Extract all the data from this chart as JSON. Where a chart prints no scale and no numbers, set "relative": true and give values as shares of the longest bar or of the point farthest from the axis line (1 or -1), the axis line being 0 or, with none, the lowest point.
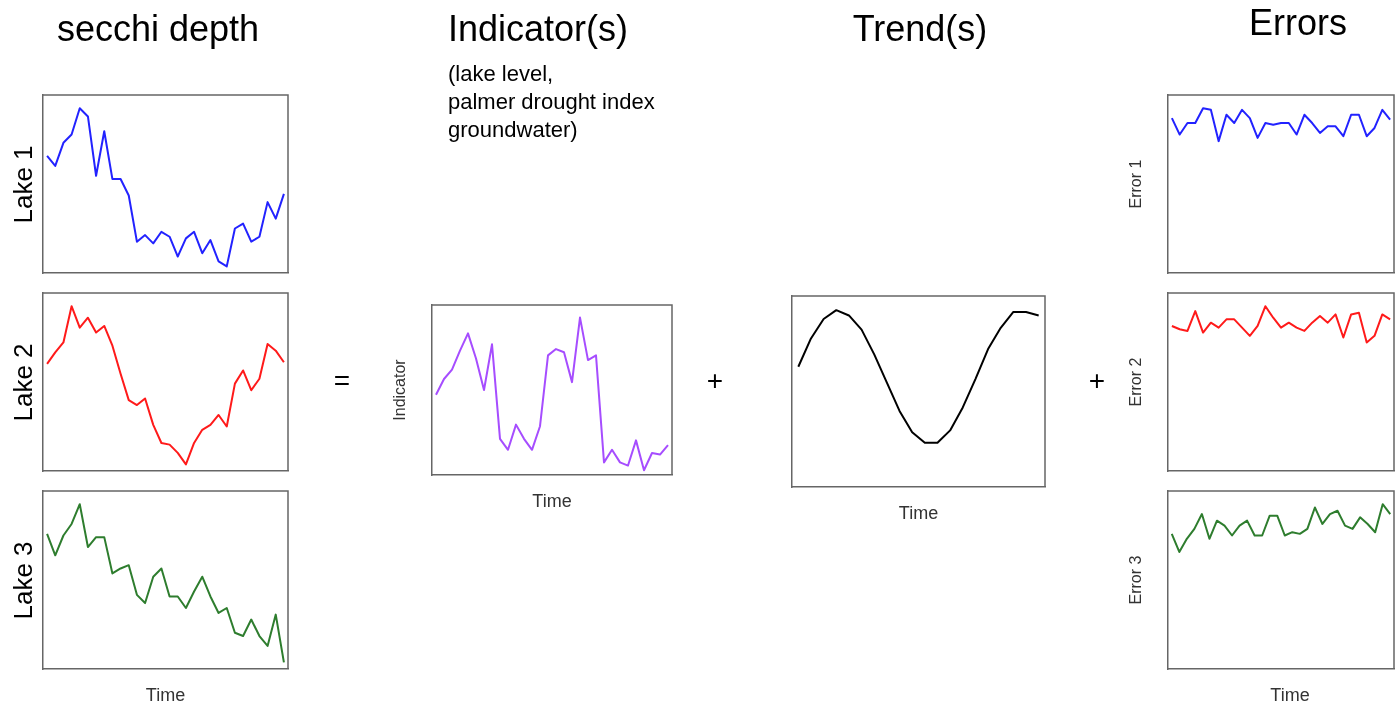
{
  "chart_data": [
    {
      "type": "line",
      "relative": true,
      "title": "secchi depth",
      "ylabel": "Lake 1",
      "color": "#2222ff",
      "categories": [
        null,
        null,
        null,
        null,
        null,
        null,
        null,
        null,
        null,
        null,
        null,
        null,
        null,
        null,
        null,
        null,
        null,
        null,
        null,
        null,
        null,
        null,
        null,
        null,
        null,
        null,
        null,
        null,
        null,
        null
      ],
      "values": [
        0.71,
        0.65,
        0.79,
        0.84,
        1,
        0.95,
        0.59,
        0.86,
        0.57,
        0.57,
        0.47,
        0.19,
        0.23,
        0.18,
        0.25,
        0.22,
        0.1,
        0.21,
        0.25,
        0.12,
        0.2,
        0.07,
        0.04,
        0.27,
        0.3,
        0.19,
        0.22,
        0.43,
        0.33,
        0.48
      ]
    },
    {
      "type": "line",
      "relative": true,
      "ylabel": "Lake 2",
      "color": "#ff1a1a",
      "annotations": [
        "="
      ],
      "categories": [
        null,
        null,
        null,
        null,
        null,
        null,
        null,
        null,
        null,
        null,
        null,
        null,
        null,
        null,
        null,
        null,
        null,
        null,
        null,
        null,
        null,
        null,
        null,
        null,
        null,
        null,
        null,
        null,
        null,
        null
      ],
      "values": [
        0.65,
        0.72,
        0.78,
        1,
        0.87,
        0.93,
        0.84,
        0.88,
        0.76,
        0.59,
        0.43,
        0.4,
        0.44,
        0.28,
        0.17,
        0.16,
        0.11,
        0.04,
        0.17,
        0.25,
        0.28,
        0.34,
        0.27,
        0.53,
        0.61,
        0.49,
        0.56,
        0.77,
        0.73,
        0.66
      ]
    },
    {
      "type": "line",
      "relative": true,
      "ylabel": "Lake 3",
      "xlabel": "Time",
      "color": "#2e7d2e",
      "categories": [
        null,
        null,
        null,
        null,
        null,
        null,
        null,
        null,
        null,
        null,
        null,
        null,
        null,
        null,
        null,
        null,
        null,
        null,
        null,
        null,
        null,
        null,
        null,
        null,
        null,
        null,
        null,
        null,
        null,
        null
      ],
      "values": [
        0.82,
        0.69,
        0.81,
        0.88,
        1,
        0.74,
        0.8,
        0.8,
        0.58,
        0.61,
        0.63,
        0.45,
        0.4,
        0.56,
        0.61,
        0.44,
        0.44,
        0.37,
        0.47,
        0.56,
        0.44,
        0.34,
        0.37,
        0.22,
        0.2,
        0.3,
        0.2,
        0.14,
        0.33,
        0.04
      ]
    },
    {
      "type": "line",
      "relative": true,
      "title": "Indicator(s)",
      "subtitle": "(lake level,\npalmer drought index\ngroundwater)",
      "ylabel": "Indicator",
      "xlabel": "Time",
      "color": "#a64dff",
      "annotations": [
        "+"
      ],
      "categories": [
        null,
        null,
        null,
        null,
        null,
        null,
        null,
        null,
        null,
        null,
        null,
        null,
        null,
        null,
        null,
        null,
        null,
        null,
        null,
        null,
        null,
        null,
        null,
        null,
        null,
        null,
        null,
        null,
        null,
        null
      ],
      "values": [
        0.51,
        0.61,
        0.67,
        0.79,
        0.9,
        0.74,
        0.54,
        0.83,
        0.23,
        0.16,
        0.32,
        0.23,
        0.16,
        0.31,
        0.76,
        0.8,
        0.78,
        0.59,
        1,
        0.73,
        0.76,
        0.08,
        0.16,
        0.08,
        0.06,
        0.22,
        0.03,
        0.14,
        0.13,
        0.19
      ]
    },
    {
      "type": "line",
      "relative": true,
      "title": "Trend(s)",
      "xlabel": "Time",
      "color": "#000000",
      "annotations": [
        "+"
      ],
      "categories": [
        null,
        null,
        null,
        null,
        null,
        null,
        null,
        null,
        null,
        null,
        null,
        null,
        null,
        null,
        null,
        null,
        null,
        null,
        null,
        null
      ],
      "values": [
        0.68,
        0.84,
        0.95,
        1,
        0.97,
        0.89,
        0.75,
        0.59,
        0.43,
        0.31,
        0.25,
        0.25,
        0.32,
        0.45,
        0.61,
        0.78,
        0.9,
        0.99,
        0.99,
        0.97
      ]
    },
    {
      "type": "line",
      "relative": true,
      "title": "Errors",
      "ylabel": "Error 1",
      "color": "#2222ff",
      "categories": [
        null,
        null,
        null,
        null,
        null,
        null,
        null,
        null,
        null,
        null,
        null,
        null,
        null,
        null,
        null,
        null,
        null,
        null,
        null,
        null,
        null,
        null,
        null,
        null,
        null,
        null,
        null,
        null,
        null
      ],
      "values": [
        0.94,
        0.84,
        0.91,
        0.91,
        1,
        0.99,
        0.8,
        0.96,
        0.91,
        0.99,
        0.94,
        0.82,
        0.91,
        0.9,
        0.91,
        0.91,
        0.84,
        0.96,
        0.91,
        0.85,
        0.89,
        0.89,
        0.83,
        0.96,
        0.96,
        0.83,
        0.88,
        0.99,
        0.93
      ]
    },
    {
      "type": "line",
      "relative": true,
      "ylabel": "Error 2",
      "color": "#ff1a1a",
      "categories": [
        null,
        null,
        null,
        null,
        null,
        null,
        null,
        null,
        null,
        null,
        null,
        null,
        null,
        null,
        null,
        null,
        null,
        null,
        null,
        null,
        null,
        null,
        null,
        null,
        null,
        null,
        null,
        null,
        null
      ],
      "values": [
        0.88,
        0.86,
        0.85,
        0.97,
        0.84,
        0.9,
        0.87,
        0.92,
        0.92,
        0.87,
        0.82,
        0.88,
        1,
        0.93,
        0.87,
        0.9,
        0.87,
        0.85,
        0.9,
        0.94,
        0.9,
        0.95,
        0.81,
        0.95,
        0.96,
        0.78,
        0.82,
        0.95,
        0.92
      ]
    },
    {
      "type": "line",
      "relative": true,
      "ylabel": "Error 3",
      "xlabel": "Time",
      "color": "#2e7d2e",
      "categories": [
        null,
        null,
        null,
        null,
        null,
        null,
        null,
        null,
        null,
        null,
        null,
        null,
        null,
        null,
        null,
        null,
        null,
        null,
        null,
        null,
        null,
        null,
        null,
        null,
        null,
        null,
        null,
        null,
        null,
        null
      ],
      "values": [
        0.82,
        0.71,
        0.79,
        0.85,
        0.94,
        0.79,
        0.9,
        0.87,
        0.81,
        0.87,
        0.9,
        0.81,
        0.81,
        0.93,
        0.93,
        0.81,
        0.83,
        0.82,
        0.85,
        0.98,
        0.88,
        0.94,
        0.96,
        0.87,
        0.85,
        0.92,
        0.88,
        0.83,
        1,
        0.94
      ]
    }
  ]
}
